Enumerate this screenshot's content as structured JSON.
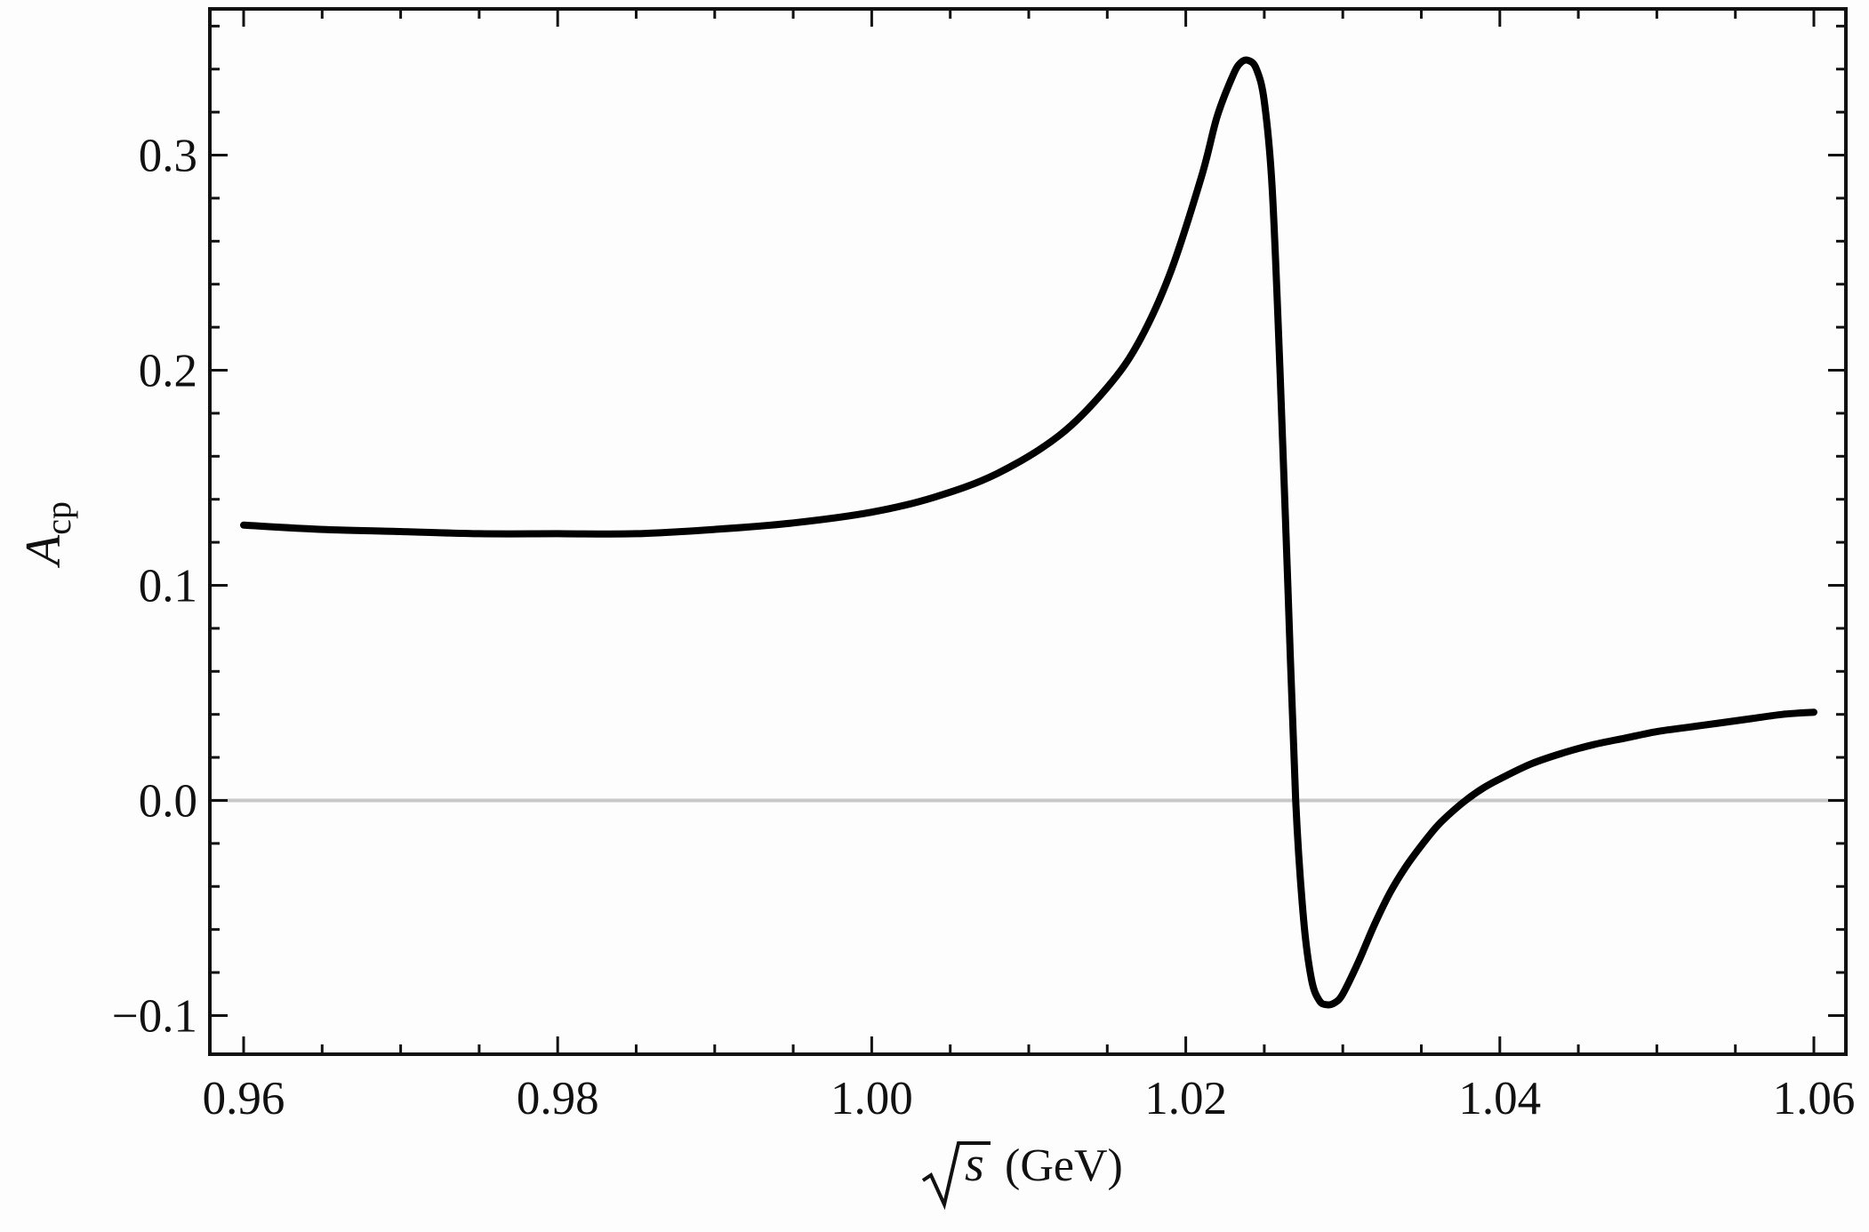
{
  "chart_data": {
    "type": "line",
    "title": "",
    "xlabel": {
      "sqrt_var": "s",
      "unit": "(GeV)"
    },
    "ylabel": {
      "main": "A",
      "sub": "cp"
    },
    "xlim": [
      0.96,
      1.06
    ],
    "ylim": [
      -0.118,
      0.368
    ],
    "x_ticks": [
      0.96,
      0.98,
      1.0,
      1.02,
      1.04,
      1.06
    ],
    "x_tick_labels": [
      "0.96",
      "0.98",
      "1.00",
      "1.02",
      "1.04",
      "1.06"
    ],
    "y_ticks": [
      -0.1,
      0.0,
      0.1,
      0.2,
      0.3
    ],
    "y_tick_labels": [
      "−0.1",
      "0.0",
      "0.1",
      "0.2",
      "0.3"
    ],
    "x_minor_step": 0.005,
    "y_minor_step": 0.02,
    "zero_line": true,
    "grid": false,
    "series": [
      {
        "color": "#000000",
        "x": [
          0.96,
          0.965,
          0.97,
          0.975,
          0.98,
          0.985,
          0.99,
          0.995,
          1.0,
          1.004,
          1.008,
          1.012,
          1.015,
          1.017,
          1.019,
          1.021,
          1.022,
          1.023,
          1.0235,
          1.024,
          1.0245,
          1.025,
          1.0255,
          1.026,
          1.0265,
          1.027,
          1.0275,
          1.028,
          1.0285,
          1.029,
          1.0295,
          1.03,
          1.031,
          1.032,
          1.033,
          1.034,
          1.035,
          1.036,
          1.037,
          1.038,
          1.039,
          1.04,
          1.042,
          1.044,
          1.046,
          1.048,
          1.05,
          1.052,
          1.054,
          1.056,
          1.058,
          1.06
        ],
        "y": [
          0.128,
          0.126,
          0.125,
          0.124,
          0.124,
          0.124,
          0.126,
          0.129,
          0.134,
          0.141,
          0.152,
          0.17,
          0.192,
          0.213,
          0.245,
          0.29,
          0.318,
          0.337,
          0.343,
          0.344,
          0.34,
          0.325,
          0.285,
          0.2,
          0.1,
          0.0,
          -0.055,
          -0.083,
          -0.093,
          -0.095,
          -0.094,
          -0.09,
          -0.075,
          -0.058,
          -0.043,
          -0.031,
          -0.021,
          -0.012,
          -0.005,
          0.001,
          0.006,
          0.01,
          0.017,
          0.022,
          0.026,
          0.029,
          0.032,
          0.034,
          0.036,
          0.038,
          0.04,
          0.041
        ]
      }
    ]
  }
}
